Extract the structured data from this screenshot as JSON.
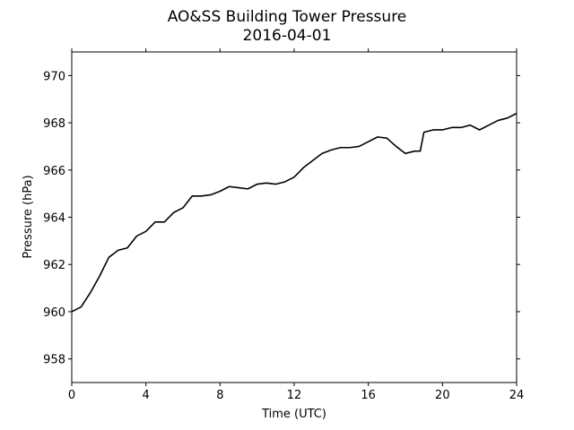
{
  "chart_data": {
    "type": "line",
    "title": "AO&SS Building Tower Pressure",
    "subtitle": "2016-04-01",
    "xlabel": "Time (UTC)",
    "ylabel": "Pressure (hPa)",
    "xlim": [
      0,
      24
    ],
    "xticks": [
      0,
      4,
      8,
      12,
      16,
      20,
      24
    ],
    "ylim": [
      957,
      971
    ],
    "yticks": [
      958,
      960,
      962,
      964,
      966,
      968,
      970
    ],
    "series": [
      {
        "name": "Pressure",
        "color": "#000000",
        "x": [
          0,
          0.5,
          1,
          1.5,
          2,
          2.5,
          3,
          3.5,
          4,
          4.5,
          5,
          5.5,
          6,
          6.5,
          7,
          7.5,
          8,
          8.5,
          9,
          9.5,
          10,
          10.5,
          11,
          11.5,
          12,
          12.5,
          13,
          13.5,
          14,
          14.5,
          15,
          15.5,
          16,
          16.5,
          17,
          17.5,
          18,
          18.5,
          18.8,
          19,
          19.5,
          20,
          20.5,
          21,
          21.5,
          22,
          22.5,
          23,
          23.5,
          24
        ],
        "values": [
          960.0,
          960.2,
          960.8,
          961.5,
          962.3,
          962.6,
          962.7,
          963.2,
          963.4,
          963.8,
          963.8,
          964.2,
          964.4,
          964.9,
          964.9,
          964.95,
          965.1,
          965.3,
          965.25,
          965.2,
          965.4,
          965.45,
          965.4,
          965.5,
          965.7,
          966.1,
          966.4,
          966.7,
          966.85,
          966.95,
          966.95,
          967.0,
          967.2,
          967.4,
          967.35,
          967.0,
          966.7,
          966.8,
          966.8,
          967.6,
          967.7,
          967.7,
          967.8,
          967.8,
          967.9,
          967.7,
          967.9,
          968.1,
          968.2,
          968.4
        ]
      }
    ]
  }
}
